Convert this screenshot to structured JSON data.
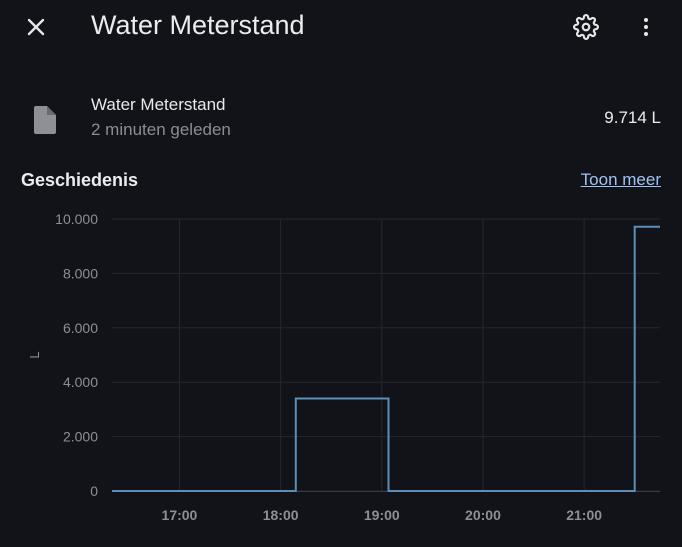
{
  "header": {
    "title": "Water Meterstand",
    "close_icon": "close-icon",
    "settings_icon": "gear-icon",
    "more_icon": "more-vertical-icon"
  },
  "entity": {
    "icon": "file-icon",
    "name": "Water Meterstand",
    "last_changed": "2 minuten geleden",
    "value": "9.714 L"
  },
  "history": {
    "title": "Geschiedenis",
    "more_link": "Toon meer"
  },
  "colors": {
    "background": "#111318",
    "line": "#5b8fb9",
    "grid": "#25272d",
    "link": "#9fc3f5"
  },
  "chart_data": {
    "type": "line",
    "step": true,
    "ylabel": "L",
    "ylim": [
      0,
      10000
    ],
    "yticks": [
      0,
      2000,
      4000,
      6000,
      8000,
      10000
    ],
    "ytick_labels": [
      "0",
      "2.000",
      "4.000",
      "6.000",
      "8.000",
      "10.000"
    ],
    "xlim": [
      "16:20",
      "21:45"
    ],
    "xticks": [
      "17:00",
      "18:00",
      "19:00",
      "20:00",
      "21:00"
    ],
    "grid": true,
    "series": [
      {
        "x": [
          "16:20",
          "18:09",
          "19:04",
          "21:30",
          "21:45"
        ],
        "y": [
          0,
          3400,
          0,
          9714,
          9714
        ]
      }
    ]
  }
}
